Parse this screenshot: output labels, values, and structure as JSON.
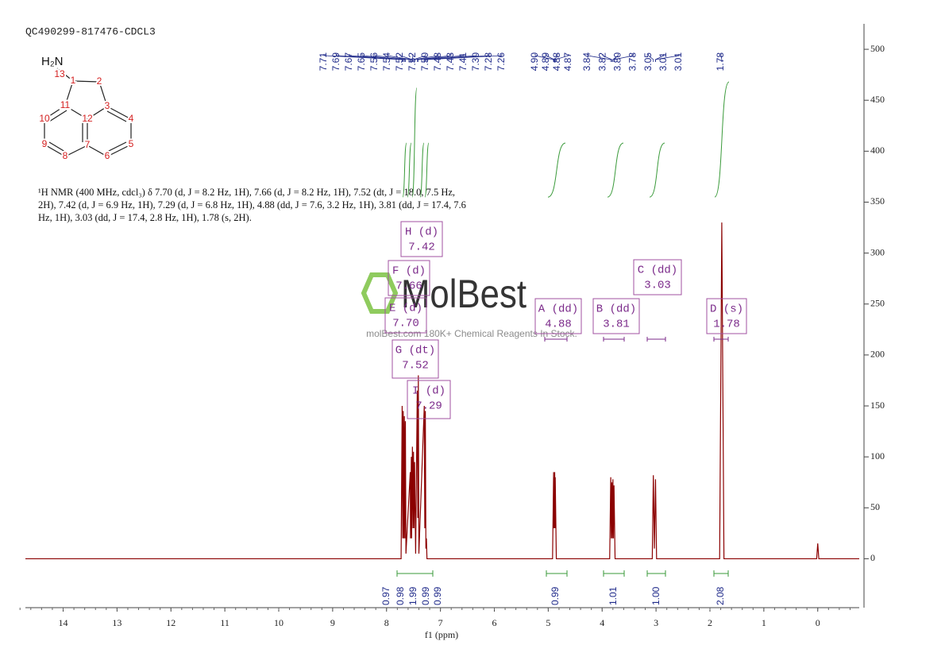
{
  "chart_data": {
    "type": "line",
    "title": "QC490299-817476-CDCL3",
    "x_label": "f1 (ppm)",
    "color": "#8b0000",
    "xlim": [
      14.7,
      -0.77
    ],
    "xticks": [
      14,
      13,
      12,
      11,
      10,
      9,
      8,
      7,
      6,
      5,
      4,
      3,
      2,
      1,
      0
    ],
    "ylim": [
      -48,
      525
    ],
    "yticks": [
      0,
      50,
      100,
      150,
      200,
      250,
      300,
      350,
      400,
      450,
      500
    ],
    "x": [
      14.7,
      7.73,
      7.71,
      7.7,
      7.69,
      7.68,
      7.67,
      7.66,
      7.65,
      7.64,
      7.56,
      7.555,
      7.54,
      7.535,
      7.52,
      7.51,
      7.5,
      7.49,
      7.48,
      7.46,
      7.43,
      7.42,
      7.41,
      7.4,
      7.3,
      7.29,
      7.28,
      7.27,
      7.26,
      7.25,
      4.92,
      4.9,
      4.895,
      4.89,
      4.885,
      4.88,
      4.875,
      4.87,
      4.85,
      3.86,
      3.84,
      3.83,
      3.82,
      3.81,
      3.8,
      3.79,
      3.78,
      3.76,
      3.07,
      3.05,
      3.03,
      3.01,
      2.99,
      1.82,
      1.78,
      1.74,
      0.02,
      0.0,
      -0.02,
      -0.77
    ],
    "values": [
      0,
      0,
      150,
      20,
      145,
      20,
      140,
      20,
      135,
      5,
      85,
      20,
      100,
      20,
      110,
      30,
      105,
      30,
      95,
      5,
      165,
      40,
      180,
      5,
      150,
      30,
      145,
      10,
      20,
      0,
      0,
      85,
      30,
      80,
      30,
      85,
      30,
      80,
      0,
      0,
      80,
      20,
      75,
      20,
      78,
      20,
      72,
      0,
      0,
      82,
      10,
      78,
      0,
      0,
      330,
      0,
      0,
      15,
      0,
      0
    ],
    "peak_label_groups": [
      [
        "7.71",
        "7.69",
        "7.67",
        "7.65",
        "7.56",
        "7.54",
        "7.52",
        "7.52",
        "7.50",
        "7.48",
        "7.43",
        "7.41",
        "7.30",
        "7.28",
        "7.26"
      ],
      [
        "4.90",
        "4.89",
        "4.88",
        "4.87"
      ],
      [
        "3.84",
        "3.82",
        "3.80",
        "3.78",
        "3.05",
        "3.01",
        "3.01"
      ],
      [
        "1.78"
      ]
    ],
    "multiplets": [
      {
        "name": "H (d)",
        "shift": "7.42"
      },
      {
        "name": "F (d)",
        "shift": "7.66"
      },
      {
        "name": "E (d)",
        "shift": "7.70"
      },
      {
        "name": "G (dt)",
        "shift": "7.52"
      },
      {
        "name": "I (d)",
        "shift": "7.29"
      },
      {
        "name": "A (dd)",
        "shift": "4.88"
      },
      {
        "name": "B (dd)",
        "shift": "3.81"
      },
      {
        "name": "C (dd)",
        "shift": "3.03"
      },
      {
        "name": "D (s)",
        "shift": "1.78"
      }
    ],
    "integral_labels": [
      "0.97",
      "0.98",
      "1.99",
      "0.99",
      "0.99",
      "0.99",
      "1.01",
      "1.00",
      "2.08"
    ]
  },
  "structure": {
    "amine": "H₂N",
    "atoms": [
      "1",
      "2",
      "3",
      "4",
      "5",
      "6",
      "7",
      "8",
      "9",
      "10",
      "11",
      "12",
      "13"
    ]
  },
  "description": "¹H NMR (400 MHz, cdcl₃) δ 7.70 (d, J = 8.2 Hz, 1H), 7.66 (d, J = 8.2 Hz, 1H), 7.52 (dt, J = 18.0, 7.5 Hz, 2H), 7.42 (d, J = 6.9 Hz, 1H), 7.29 (d, J = 6.8 Hz, 1H), 4.88 (dd, J = 7.6, 3.2 Hz, 1H), 3.81 (dd, J = 17.4, 7.6 Hz, 1H), 3.03 (dd, J = 17.4, 2.8 Hz, 1H), 1.78 (s, 2H).",
  "watermark": {
    "brand": "MolBest",
    "tagline": "molBest.com 180K+ Chemical Reagents In Stock."
  }
}
